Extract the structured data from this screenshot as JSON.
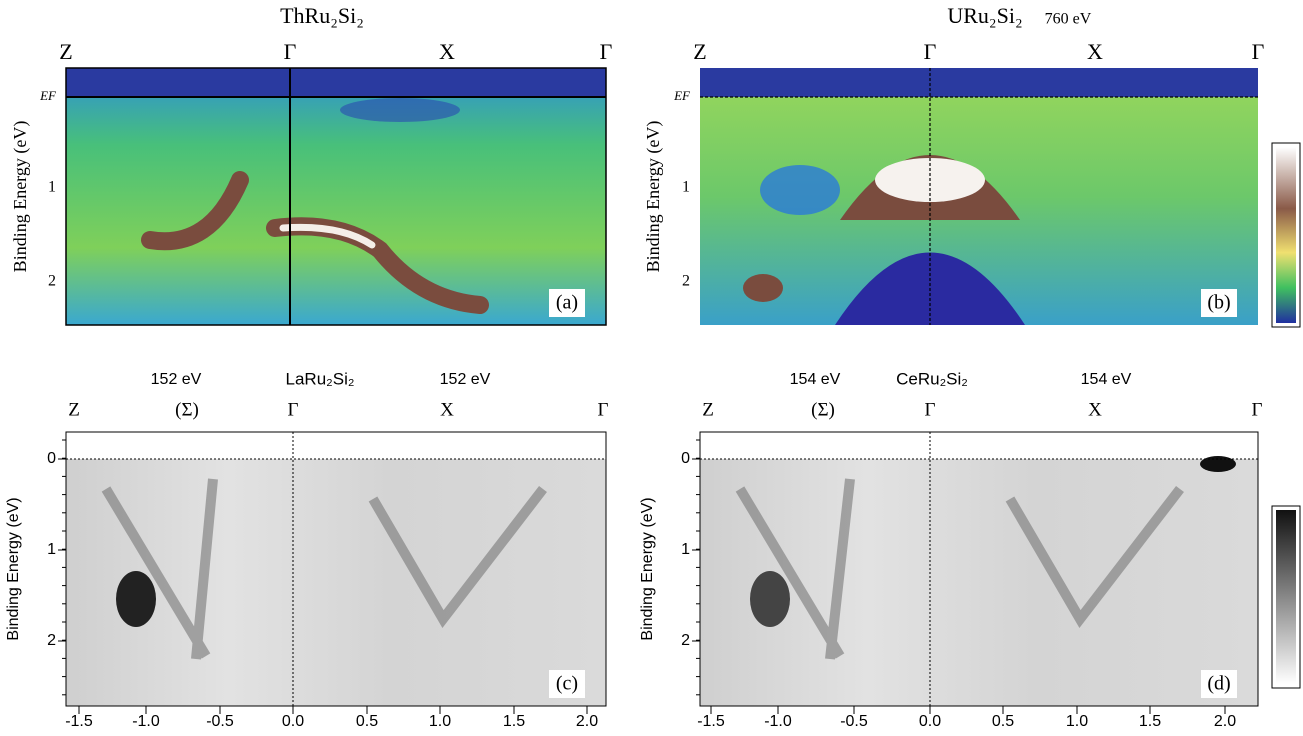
{
  "panels": [
    {
      "title": "ThRu₂Si₂",
      "symmetry": [
        "Z",
        "Γ",
        "X",
        "Γ"
      ],
      "y_label": "Binding Energy (eV)",
      "y_ticks": [
        "EF",
        "1",
        "2"
      ],
      "tag": "(a)"
    },
    {
      "title": "URu₂Si₂",
      "energy": "760 eV",
      "symmetry": [
        "Z",
        "Γ",
        "X",
        "Γ"
      ],
      "y_label": "Binding Energy (eV)",
      "y_ticks": [
        "EF",
        "1",
        "2"
      ],
      "tag": "(b)"
    },
    {
      "energy_left": "152 eV",
      "title": "LaRu₂Si₂",
      "energy_right": "152 eV",
      "symmetry": [
        "Z",
        "(Σ)",
        "Γ",
        "X",
        "Γ"
      ],
      "y_label": "Binding Energy (eV)",
      "y_ticks": [
        "0",
        "1",
        "2"
      ],
      "x_ticks": [
        "-1.5",
        "-1.0",
        "-0.5",
        "0.0",
        "0.5",
        "1.0",
        "1.5",
        "2.0"
      ],
      "tag": "(c)"
    },
    {
      "energy_left": "154 eV",
      "title": "CeRu₂Si₂",
      "energy_right": "154 eV",
      "symmetry": [
        "Z",
        "(Σ)",
        "Γ",
        "X",
        "Γ"
      ],
      "y_label": "Binding Energy (eV)",
      "y_ticks": [
        "0",
        "1",
        "2"
      ],
      "x_ticks": [
        "-1.5",
        "-1.0",
        "-0.5",
        "0.0",
        "0.5",
        "1.0",
        "1.5",
        "2.0"
      ],
      "tag": "(d)"
    }
  ]
}
